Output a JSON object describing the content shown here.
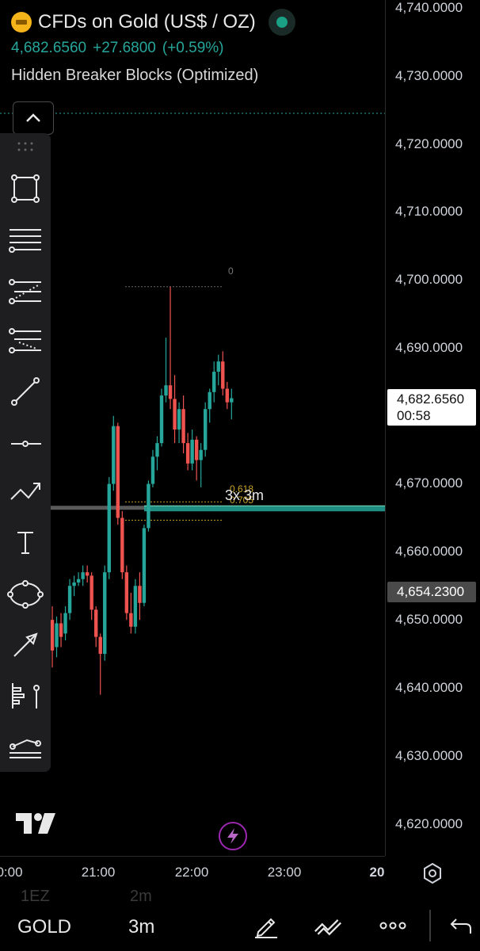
{
  "header": {
    "title": "CFDs on Gold (US$ / OZ)",
    "price": "4,682.6560",
    "change": "+27.6800",
    "change_pct": "(+0.59%)",
    "indicator": "Hidden Breaker Blocks (Optimized)",
    "icon": "gold-bar-icon",
    "status_color": "#1aa185"
  },
  "price_axis": {
    "ticks": [
      "4,740.0000",
      "4,730.0000",
      "4,720.0000",
      "4,710.0000",
      "4,700.0000",
      "4,690.0000",
      "4,670.0000",
      "4,660.0000",
      "4,650.0000",
      "4,640.0000",
      "4,630.0000",
      "4,620.0000"
    ],
    "current_price": "4,682.6560",
    "countdown": "00:58",
    "line_price": "4,654.2300"
  },
  "time_axis": {
    "labels": [
      "0:00",
      "21:00",
      "22:00",
      "23:00",
      "20"
    ]
  },
  "chart_labels": {
    "fib_top": "0",
    "fib_618": "0.618",
    "fib_705": "0.705",
    "timeframe_tag": "3x 3m"
  },
  "toolbar": {
    "tools": [
      "rectangle-icon",
      "horizontal-lines-icon",
      "fib-retracement-icon",
      "fib-extension-icon",
      "trend-line-icon",
      "horizontal-ray-icon",
      "path-icon",
      "text-icon",
      "ellipse-icon",
      "arrow-icon",
      "anchored-vwap-icon",
      "pattern-icon"
    ]
  },
  "bottom_bar": {
    "symbol": "GOLD",
    "interval": "3m",
    "ghost_left": "1EZ",
    "ghost_right": "2m"
  },
  "colors": {
    "up": "#26a69a",
    "down": "#ef5350",
    "background": "#000000",
    "zone": "#26a69a"
  },
  "chart_data": {
    "type": "candlestick",
    "series": [
      {
        "o": 4650.0,
        "h": 4652.0,
        "l": 4643.0,
        "c": 4645.5
      },
      {
        "o": 4646.0,
        "h": 4650.5,
        "l": 4644.5,
        "c": 4649.5
      },
      {
        "o": 4649.5,
        "h": 4651.0,
        "l": 4646.0,
        "c": 4647.5
      },
      {
        "o": 4648.0,
        "h": 4652.0,
        "l": 4647.0,
        "c": 4651.0
      },
      {
        "o": 4651.0,
        "h": 4656.0,
        "l": 4650.0,
        "c": 4655.0
      },
      {
        "o": 4655.0,
        "h": 4656.5,
        "l": 4653.5,
        "c": 4655.5
      },
      {
        "o": 4655.5,
        "h": 4657.0,
        "l": 4655.0,
        "c": 4656.0
      },
      {
        "o": 4656.0,
        "h": 4658.0,
        "l": 4655.0,
        "c": 4657.0
      },
      {
        "o": 4657.0,
        "h": 4658.0,
        "l": 4655.5,
        "c": 4656.5
      },
      {
        "o": 4656.5,
        "h": 4657.0,
        "l": 4650.0,
        "c": 4651.5
      },
      {
        "o": 4651.5,
        "h": 4652.0,
        "l": 4646.0,
        "c": 4647.5
      },
      {
        "o": 4647.5,
        "h": 4648.0,
        "l": 4639.0,
        "c": 4645.0
      },
      {
        "o": 4645.0,
        "h": 4658.0,
        "l": 4644.0,
        "c": 4657.0
      },
      {
        "o": 4657.0,
        "h": 4671.0,
        "l": 4656.0,
        "c": 4670.0
      },
      {
        "o": 4670.0,
        "h": 4680.0,
        "l": 4669.0,
        "c": 4678.5
      },
      {
        "o": 4678.5,
        "h": 4679.0,
        "l": 4664.0,
        "c": 4665.0
      },
      {
        "o": 4665.0,
        "h": 4666.0,
        "l": 4656.0,
        "c": 4657.0
      },
      {
        "o": 4657.0,
        "h": 4658.0,
        "l": 4650.0,
        "c": 4651.0
      },
      {
        "o": 4651.0,
        "h": 4654.0,
        "l": 4648.0,
        "c": 4649.0
      },
      {
        "o": 4649.0,
        "h": 4656.0,
        "l": 4648.0,
        "c": 4655.0
      },
      {
        "o": 4655.0,
        "h": 4657.0,
        "l": 4650.0,
        "c": 4652.5
      },
      {
        "o": 4652.5,
        "h": 4664.0,
        "l": 4652.0,
        "c": 4663.5
      },
      {
        "o": 4663.5,
        "h": 4670.5,
        "l": 4663.0,
        "c": 4670.0
      },
      {
        "o": 4670.0,
        "h": 4675.0,
        "l": 4669.5,
        "c": 4674.0
      },
      {
        "o": 4674.0,
        "h": 4677.0,
        "l": 4672.0,
        "c": 4676.0
      },
      {
        "o": 4676.0,
        "h": 4684.0,
        "l": 4675.5,
        "c": 4683.0
      },
      {
        "o": 4683.0,
        "h": 4691.5,
        "l": 4682.0,
        "c": 4684.5
      },
      {
        "o": 4684.5,
        "h": 4699.0,
        "l": 4681.0,
        "c": 4682.5
      },
      {
        "o": 4682.5,
        "h": 4686.0,
        "l": 4676.0,
        "c": 4678.0
      },
      {
        "o": 4678.0,
        "h": 4682.0,
        "l": 4676.0,
        "c": 4681.0
      },
      {
        "o": 4681.0,
        "h": 4683.0,
        "l": 4674.5,
        "c": 4676.0
      },
      {
        "o": 4676.0,
        "h": 4677.5,
        "l": 4672.0,
        "c": 4673.0
      },
      {
        "o": 4673.0,
        "h": 4678.0,
        "l": 4672.0,
        "c": 4676.5
      },
      {
        "o": 4676.5,
        "h": 4677.0,
        "l": 4670.5,
        "c": 4673.5
      },
      {
        "o": 4673.5,
        "h": 4676.0,
        "l": 4669.5,
        "c": 4675.0
      },
      {
        "o": 4675.0,
        "h": 4682.0,
        "l": 4674.0,
        "c": 4681.0
      },
      {
        "o": 4681.0,
        "h": 4684.0,
        "l": 4679.0,
        "c": 4683.5
      },
      {
        "o": 4683.5,
        "h": 4688.0,
        "l": 4682.0,
        "c": 4686.5
      },
      {
        "o": 4686.5,
        "h": 4689.0,
        "l": 4684.5,
        "c": 4688.0
      },
      {
        "o": 4688.0,
        "h": 4689.5,
        "l": 4683.0,
        "c": 4684.0
      },
      {
        "o": 4684.0,
        "h": 4685.0,
        "l": 4681.0,
        "c": 4682.0
      },
      {
        "o": 4682.0,
        "h": 4684.0,
        "l": 4679.5,
        "c": 4682.6
      }
    ],
    "price_range": [
      4615,
      4741
    ],
    "levels": {
      "fib_0": 4699.0,
      "fib_618": 4666.9,
      "fib_705": 4665.6,
      "zone_low": 4665.8,
      "zone_high": 4666.9,
      "horizontal_line": 4654.23
    }
  }
}
